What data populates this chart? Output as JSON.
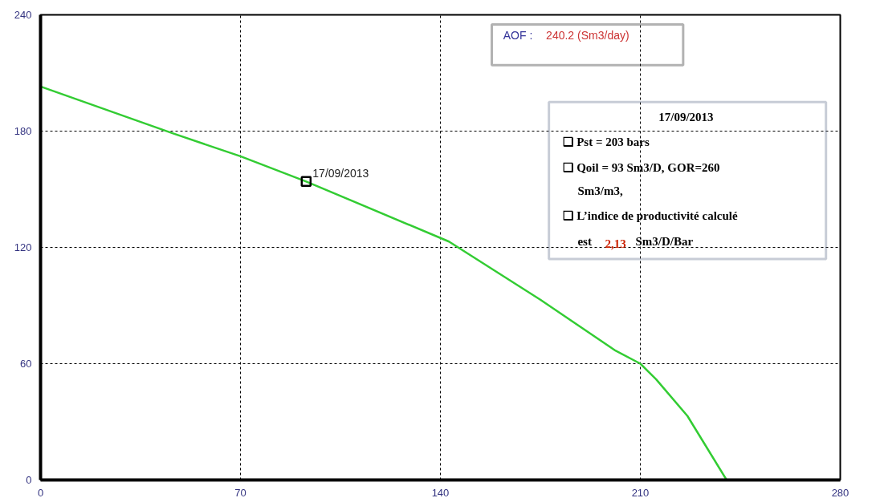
{
  "chart_data": {
    "type": "line",
    "x": [
      0,
      46,
      70,
      93,
      143,
      175,
      201,
      210,
      215.5,
      226.5,
      240.2
    ],
    "series": [
      {
        "color": "#33cc33",
        "values": [
          203,
          179,
          167,
          154,
          123,
          93,
          67,
          60,
          52,
          33,
          0
        ]
      },
      {
        "type": "scatter",
        "marker": "square",
        "color": "#000000",
        "x": [
          93
        ],
        "values": [
          154
        ]
      }
    ],
    "xlim": [
      0,
      280
    ],
    "ylim": [
      0,
      240
    ],
    "xticks": [
      0,
      70,
      140,
      210,
      280
    ],
    "yticks": [
      0,
      60,
      120,
      180,
      240
    ],
    "grid": true,
    "annotations": [
      {
        "text": "17/09/2013",
        "x": 93,
        "y": 154
      },
      "AOF :",
      "240.2 (Sm3/day)",
      "17/09/2013",
      "❑ Pst = 203 bars",
      "❑ Qoil = 93 Sm3/D, GOR=260",
      "Sm3/m3,",
      "❑ L’indice de productivité  calculé",
      "est",
      "2,13",
      "Sm3/D/Bar"
    ]
  }
}
